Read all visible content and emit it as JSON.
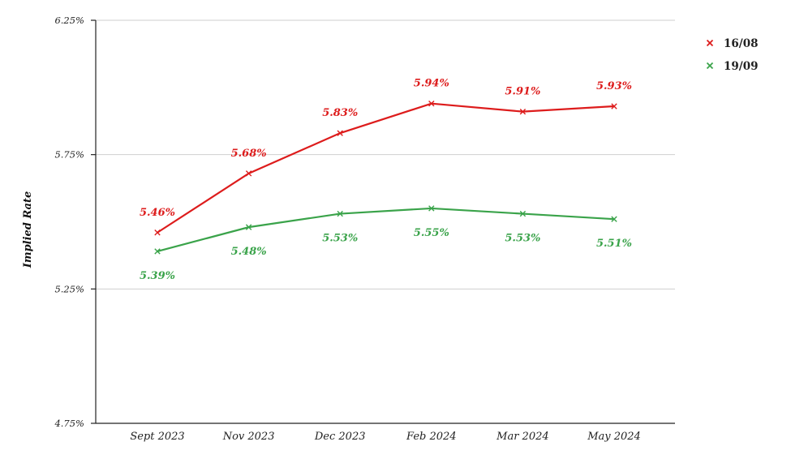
{
  "chart_data": {
    "type": "line",
    "ylabel": "Implied Rate",
    "xlabel": "",
    "categories": [
      "Sept 2023",
      "Nov 2023",
      "Dec 2023",
      "Feb 2024",
      "Mar 2024",
      "May 2024"
    ],
    "ylim": [
      4.75,
      6.25
    ],
    "yticks": [
      "6.25%",
      "5.75%",
      "5.25%",
      "4.75%"
    ],
    "grid": true,
    "legend_position": "top-right",
    "series": [
      {
        "name": "16/08",
        "color": "#dd1c1c",
        "values": [
          5.46,
          5.68,
          5.83,
          5.94,
          5.91,
          5.93
        ],
        "labels": [
          "5.46%",
          "5.68%",
          "5.83%",
          "5.94%",
          "5.91%",
          "5.93%"
        ],
        "label_position": "above"
      },
      {
        "name": "19/09",
        "color": "#3aa34a",
        "values": [
          5.39,
          5.48,
          5.53,
          5.55,
          5.53,
          5.51
        ],
        "labels": [
          "5.39%",
          "5.48%",
          "5.53%",
          "5.55%",
          "5.53%",
          "5.51%"
        ],
        "label_position": "below"
      }
    ]
  }
}
